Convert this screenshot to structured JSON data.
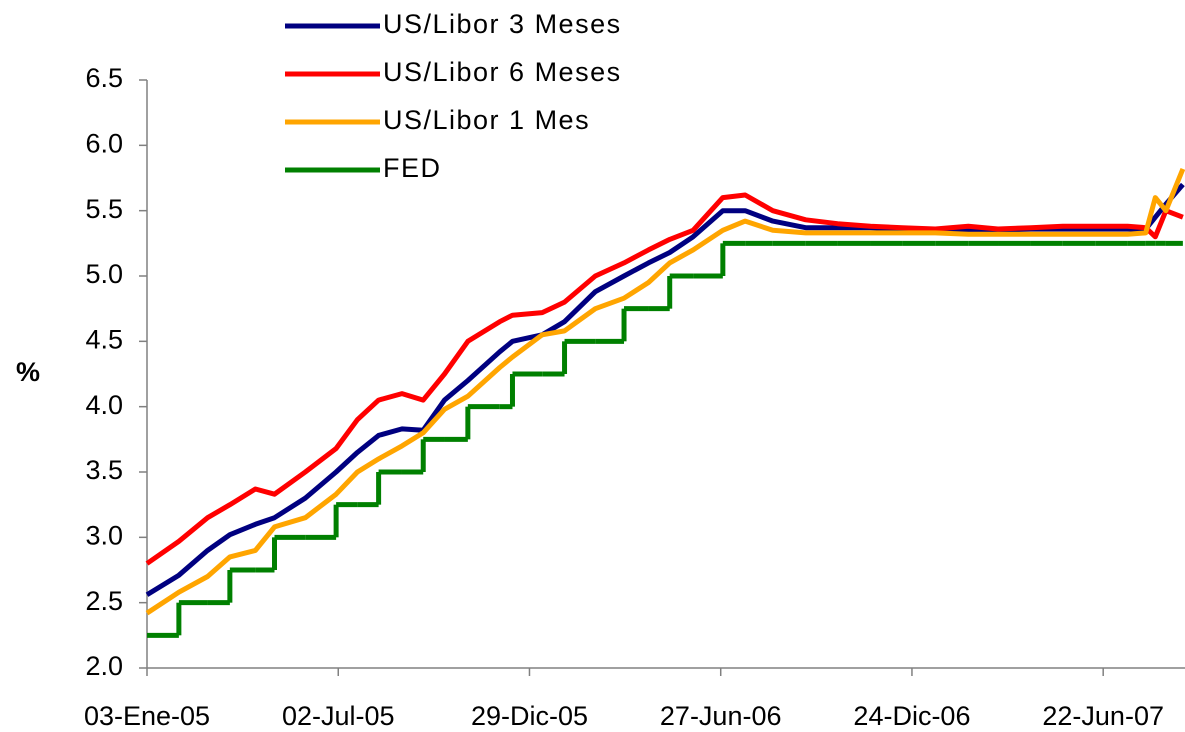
{
  "chart_data": {
    "type": "line",
    "y_label": "%",
    "x": [
      "2005-01-03",
      "2005-02-02",
      "2005-03-01",
      "2005-03-22",
      "2005-04-15",
      "2005-05-03",
      "2005-06-01",
      "2005-06-30",
      "2005-07-20",
      "2005-08-09",
      "2005-08-31",
      "2005-09-20",
      "2005-10-10",
      "2005-11-01",
      "2005-12-01",
      "2005-12-13",
      "2006-01-10",
      "2006-01-31",
      "2006-03-01",
      "2006-03-28",
      "2006-04-20",
      "2006-05-10",
      "2006-06-01",
      "2006-06-29",
      "2006-07-20",
      "2006-08-15",
      "2006-09-15",
      "2006-10-15",
      "2006-11-15",
      "2006-12-15",
      "2007-01-15",
      "2007-02-15",
      "2007-03-15",
      "2007-04-15",
      "2007-05-15",
      "2007-06-15",
      "2007-07-15",
      "2007-08-01",
      "2007-08-10",
      "2007-08-20",
      "2007-09-05"
    ],
    "series": [
      {
        "name": "US/Libor 3 Meses",
        "color": "#000080",
        "values": [
          2.56,
          2.71,
          2.9,
          3.02,
          3.1,
          3.15,
          3.3,
          3.5,
          3.65,
          3.78,
          3.83,
          3.82,
          4.05,
          4.2,
          4.42,
          4.5,
          4.55,
          4.65,
          4.88,
          5.0,
          5.1,
          5.18,
          5.3,
          5.5,
          5.5,
          5.42,
          5.37,
          5.37,
          5.37,
          5.36,
          5.36,
          5.35,
          5.35,
          5.36,
          5.36,
          5.36,
          5.36,
          5.36,
          5.45,
          5.55,
          5.7
        ]
      },
      {
        "name": "US/Libor 6 Meses",
        "color": "#ff0000",
        "values": [
          2.8,
          2.97,
          3.15,
          3.25,
          3.37,
          3.33,
          3.5,
          3.68,
          3.9,
          4.05,
          4.1,
          4.05,
          4.25,
          4.5,
          4.65,
          4.7,
          4.72,
          4.8,
          5.0,
          5.1,
          5.2,
          5.28,
          5.35,
          5.6,
          5.62,
          5.5,
          5.43,
          5.4,
          5.38,
          5.37,
          5.36,
          5.38,
          5.36,
          5.37,
          5.38,
          5.38,
          5.38,
          5.37,
          5.3,
          5.5,
          5.45
        ]
      },
      {
        "name": "US/Libor 1 Mes",
        "color": "#ffa500",
        "values": [
          2.42,
          2.58,
          2.7,
          2.85,
          2.9,
          3.08,
          3.15,
          3.33,
          3.5,
          3.6,
          3.7,
          3.8,
          3.98,
          4.08,
          4.3,
          4.38,
          4.55,
          4.58,
          4.75,
          4.83,
          4.95,
          5.1,
          5.2,
          5.35,
          5.42,
          5.35,
          5.33,
          5.33,
          5.33,
          5.33,
          5.33,
          5.32,
          5.32,
          5.32,
          5.32,
          5.32,
          5.32,
          5.33,
          5.6,
          5.5,
          5.82
        ]
      },
      {
        "name": "FED",
        "color": "#008000",
        "step": true,
        "values": [
          2.25,
          2.5,
          2.5,
          2.75,
          2.75,
          3.0,
          3.0,
          3.25,
          3.25,
          3.5,
          3.5,
          3.75,
          3.75,
          4.0,
          4.0,
          4.25,
          4.25,
          4.5,
          4.5,
          4.75,
          4.75,
          5.0,
          5.0,
          5.25,
          5.25,
          5.25,
          5.25,
          5.25,
          5.25,
          5.25,
          5.25,
          5.25,
          5.25,
          5.25,
          5.25,
          5.25,
          5.25,
          5.25,
          5.25,
          5.25,
          5.25
        ]
      }
    ],
    "xlim": [
      "2005-01-03",
      "2007-09-07"
    ],
    "xticks": [
      {
        "value": "2005-01-03",
        "label": "03-Ene-05"
      },
      {
        "value": "2005-07-02",
        "label": "02-Jul-05"
      },
      {
        "value": "2005-12-29",
        "label": "29-Dic-05"
      },
      {
        "value": "2006-06-27",
        "label": "27-Jun-06"
      },
      {
        "value": "2006-12-24",
        "label": "24-Dic-06"
      },
      {
        "value": "2007-06-22",
        "label": "22-Jun-07"
      }
    ],
    "ylim": [
      2.0,
      6.5
    ],
    "yticks": [
      {
        "value": 2.0,
        "label": "2.0"
      },
      {
        "value": 2.5,
        "label": "2.5"
      },
      {
        "value": 3.0,
        "label": "3.0"
      },
      {
        "value": 3.5,
        "label": "3.5"
      },
      {
        "value": 4.0,
        "label": "4.0"
      },
      {
        "value": 4.5,
        "label": "4.5"
      },
      {
        "value": 5.0,
        "label": "5.0"
      },
      {
        "value": 5.5,
        "label": "5.5"
      },
      {
        "value": 6.0,
        "label": "6.0"
      },
      {
        "value": 6.5,
        "label": "6.5"
      }
    ],
    "grid": false,
    "legend": "top"
  }
}
